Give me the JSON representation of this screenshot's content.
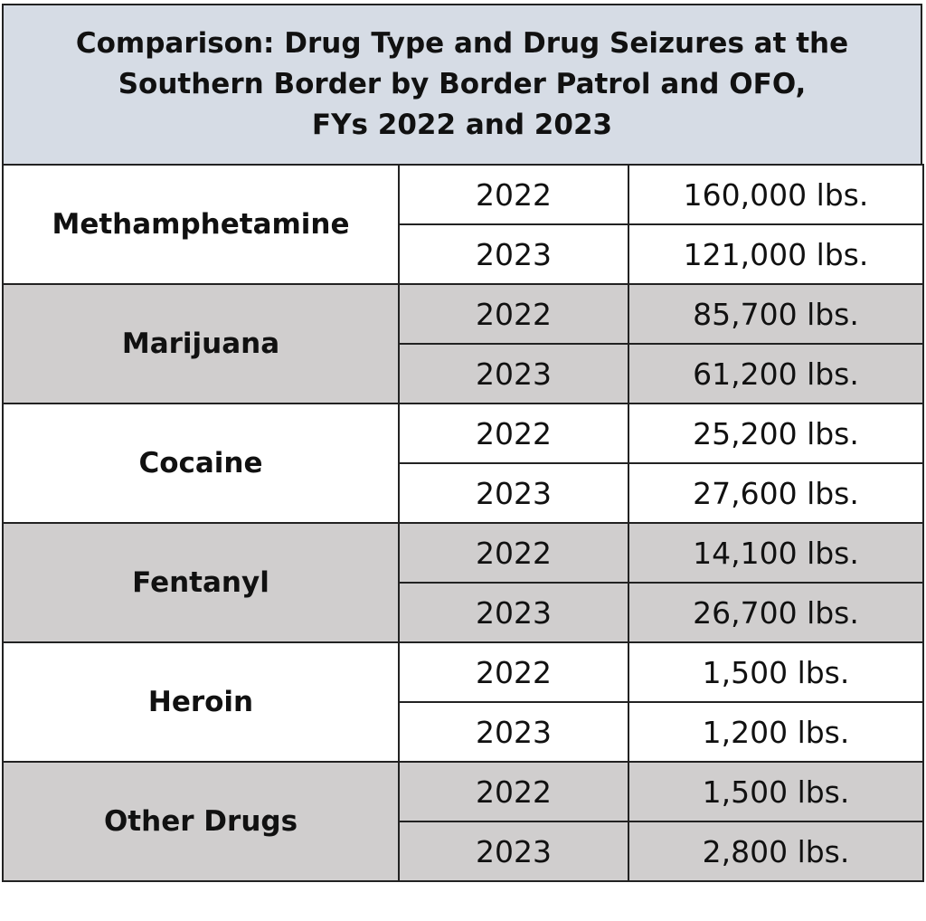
{
  "header": {
    "title_lines": [
      "Comparison: Drug Type and Drug Seizures at the",
      "Southern Border by Border Patrol and OFO,",
      "FYs 2022 and 2023"
    ]
  },
  "table": {
    "rows": [
      {
        "drug": "Methamphetamine",
        "entries": [
          {
            "year": 2022,
            "amount": "160,000 lbs."
          },
          {
            "year": 2023,
            "amount": "121,000 lbs."
          }
        ]
      },
      {
        "drug": "Marijuana",
        "entries": [
          {
            "year": 2022,
            "amount": "85,700 lbs."
          },
          {
            "year": 2023,
            "amount": "61,200 lbs."
          }
        ]
      },
      {
        "drug": "Cocaine",
        "entries": [
          {
            "year": 2022,
            "amount": "25,200 lbs."
          },
          {
            "year": 2023,
            "amount": "27,600 lbs."
          }
        ]
      },
      {
        "drug": "Fentanyl",
        "entries": [
          {
            "year": 2022,
            "amount": "14,100 lbs."
          },
          {
            "year": 2023,
            "amount": "26,700 lbs."
          }
        ]
      },
      {
        "drug": "Heroin",
        "entries": [
          {
            "year": 2022,
            "amount": "1,500 lbs."
          },
          {
            "year": 2023,
            "amount": "1,200 lbs."
          }
        ]
      },
      {
        "drug": "Other Drugs",
        "entries": [
          {
            "year": 2022,
            "amount": "1,500 lbs."
          },
          {
            "year": 2023,
            "amount": "2,800 lbs."
          }
        ]
      }
    ]
  }
}
